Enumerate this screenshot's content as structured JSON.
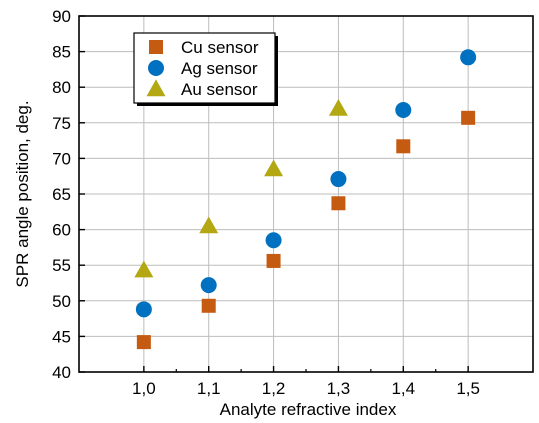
{
  "chart_data": {
    "type": "scatter",
    "title": "",
    "xlabel": "Analyte refractive index",
    "ylabel": "SPR angle position, deg.",
    "x": [
      1.0,
      1.1,
      1.2,
      1.3,
      1.4,
      1.5
    ],
    "x_tick_labels": [
      "1,0",
      "1,1",
      "1,2",
      "1,3",
      "1,4",
      "1,5"
    ],
    "xlim": [
      0.9,
      1.6
    ],
    "ylim": [
      40,
      90
    ],
    "y_ticks": [
      40,
      45,
      50,
      55,
      60,
      65,
      70,
      75,
      80,
      85,
      90
    ],
    "grid": true,
    "legend_position": "top-left",
    "series": [
      {
        "name": "Cu sensor",
        "marker": "square",
        "color": "#c55a11",
        "points": [
          [
            1.0,
            44.2
          ],
          [
            1.1,
            49.3
          ],
          [
            1.2,
            55.6
          ],
          [
            1.3,
            63.7
          ],
          [
            1.4,
            71.7
          ],
          [
            1.5,
            75.7
          ]
        ]
      },
      {
        "name": "Ag sensor",
        "marker": "circle",
        "color": "#0070c0",
        "points": [
          [
            1.0,
            48.8
          ],
          [
            1.1,
            52.2
          ],
          [
            1.2,
            58.5
          ],
          [
            1.3,
            67.1
          ],
          [
            1.4,
            76.8
          ],
          [
            1.5,
            84.2
          ]
        ]
      },
      {
        "name": "Au sensor",
        "marker": "triangle",
        "color": "#b3a812",
        "points": [
          [
            1.0,
            54.3
          ],
          [
            1.1,
            60.5
          ],
          [
            1.2,
            68.5
          ],
          [
            1.3,
            77.0
          ]
        ]
      }
    ]
  }
}
